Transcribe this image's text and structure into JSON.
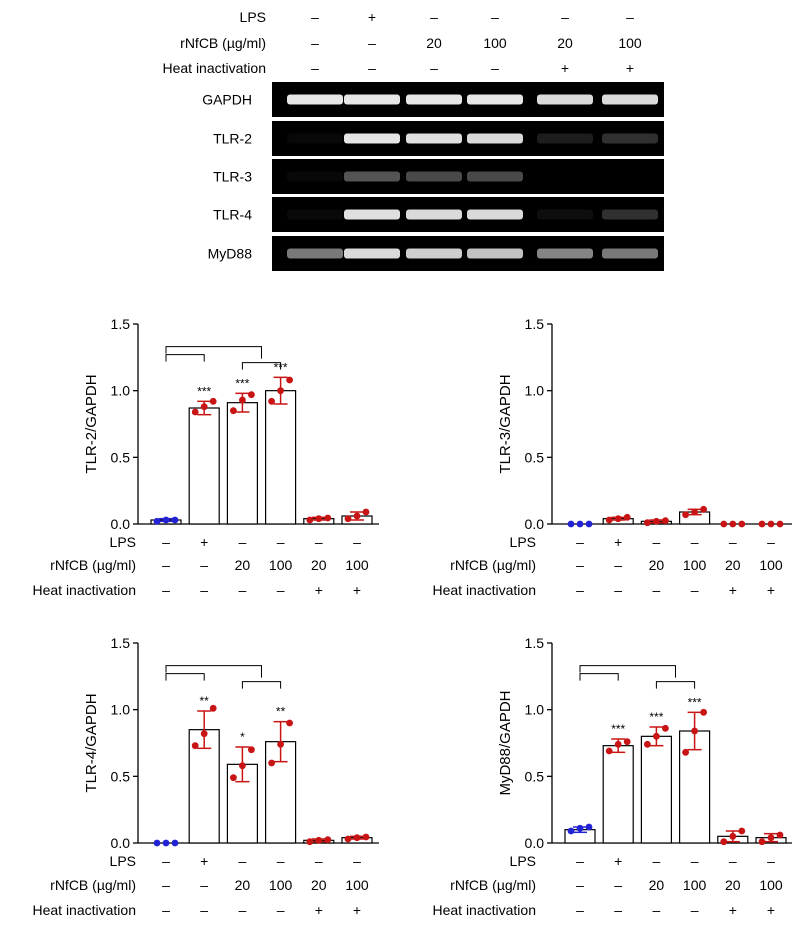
{
  "colors": {
    "control": "#2323d6",
    "treated": "#c81414",
    "gel_bg": "#000000",
    "band": "#ffffff",
    "bar_fill": "#ffffff",
    "axis": "#000000"
  },
  "gel": {
    "conditions": [
      {
        "label": "LPS",
        "values": [
          "–",
          "+",
          "–",
          "–",
          "–",
          "–"
        ]
      },
      {
        "label": "rNfCB (µg/ml)",
        "values": [
          "–",
          "–",
          "20",
          "100",
          "20",
          "100"
        ]
      },
      {
        "label": "Heat inactivation",
        "values": [
          "–",
          "–",
          "–",
          "–",
          "+",
          "+"
        ]
      }
    ],
    "rows": [
      {
        "label": "GAPDH",
        "intensity": [
          0.95,
          0.95,
          0.95,
          0.95,
          0.9,
          0.9
        ]
      },
      {
        "label": "TLR-2",
        "intensity": [
          0.03,
          0.95,
          0.92,
          0.9,
          0.12,
          0.2
        ]
      },
      {
        "label": "TLR-3",
        "intensity": [
          0.03,
          0.35,
          0.3,
          0.3,
          0.0,
          0.0
        ]
      },
      {
        "label": "TLR-4",
        "intensity": [
          0.04,
          0.92,
          0.9,
          0.9,
          0.06,
          0.2
        ]
      },
      {
        "label": "MyD88",
        "intensity": [
          0.5,
          0.9,
          0.85,
          0.8,
          0.55,
          0.5
        ]
      }
    ]
  },
  "chart_data": [
    {
      "type": "bar",
      "ylabel": "TLR-2/GAPDH",
      "ylim": [
        0,
        1.5
      ],
      "yticks": [
        "0.0",
        "0.5",
        "1.0",
        "1.5"
      ],
      "values": [
        0.03,
        0.87,
        0.91,
        1.0,
        0.04,
        0.06
      ],
      "errors": [
        0.01,
        0.05,
        0.07,
        0.1,
        0.01,
        0.03
      ],
      "points": [
        [
          0.02,
          0.03,
          0.03
        ],
        [
          0.84,
          0.88,
          0.92
        ],
        [
          0.85,
          0.93,
          0.97
        ],
        [
          0.92,
          1.0,
          1.08
        ],
        [
          0.03,
          0.04,
          0.045
        ],
        [
          0.04,
          0.06,
          0.09
        ]
      ],
      "significance": [
        "",
        "***",
        "***",
        "***",
        "",
        ""
      ],
      "brackets": true,
      "conditions": [
        {
          "label": "LPS",
          "values": [
            "–",
            "+",
            "–",
            "–",
            "–",
            "–"
          ]
        },
        {
          "label": "rNfCB (µg/ml)",
          "values": [
            "–",
            "–",
            "20",
            "100",
            "20",
            "100"
          ]
        },
        {
          "label": "Heat inactivation",
          "values": [
            "–",
            "–",
            "–",
            "–",
            "+",
            "+"
          ]
        }
      ]
    },
    {
      "type": "bar",
      "ylabel": "TLR-3/GAPDH",
      "ylim": [
        0,
        1.5
      ],
      "yticks": [
        "0.0",
        "0.5",
        "1.0",
        "1.5"
      ],
      "values": [
        0.0,
        0.04,
        0.02,
        0.09,
        0.0,
        0.0
      ],
      "errors": [
        0.0,
        0.01,
        0.01,
        0.02,
        0.0,
        0.0
      ],
      "points": [
        [
          0.0,
          0.0,
          0.0
        ],
        [
          0.03,
          0.04,
          0.05
        ],
        [
          0.01,
          0.02,
          0.025
        ],
        [
          0.07,
          0.09,
          0.11
        ],
        [
          0.0,
          0.0,
          0.0
        ],
        [
          0.0,
          0.0,
          0.0
        ]
      ],
      "significance": [
        "",
        "",
        "",
        "",
        "",
        ""
      ],
      "brackets": false,
      "conditions": [
        {
          "label": "LPS",
          "values": [
            "–",
            "+",
            "–",
            "–",
            "–",
            "–"
          ]
        },
        {
          "label": "rNfCB (µg/ml)",
          "values": [
            "–",
            "–",
            "20",
            "100",
            "20",
            "100"
          ]
        },
        {
          "label": "Heat inactivation",
          "values": [
            "–",
            "–",
            "–",
            "–",
            "+",
            "+"
          ]
        }
      ]
    },
    {
      "type": "bar",
      "ylabel": "TLR-4/GAPDH",
      "ylim": [
        0,
        1.5
      ],
      "yticks": [
        "0.0",
        "0.5",
        "1.0",
        "1.5"
      ],
      "values": [
        0.0,
        0.85,
        0.59,
        0.76,
        0.02,
        0.04
      ],
      "errors": [
        0.0,
        0.14,
        0.13,
        0.15,
        0.01,
        0.01
      ],
      "points": [
        [
          0.0,
          0.0,
          0.0
        ],
        [
          0.73,
          0.82,
          1.01
        ],
        [
          0.49,
          0.58,
          0.7
        ],
        [
          0.6,
          0.74,
          0.9
        ],
        [
          0.01,
          0.02,
          0.025
        ],
        [
          0.03,
          0.04,
          0.045
        ]
      ],
      "significance": [
        "",
        "**",
        "*",
        "**",
        "",
        ""
      ],
      "brackets": true,
      "conditions": [
        {
          "label": "LPS",
          "values": [
            "–",
            "+",
            "–",
            "–",
            "–",
            "–"
          ]
        },
        {
          "label": "rNfCB (µg/ml)",
          "values": [
            "–",
            "–",
            "20",
            "100",
            "20",
            "100"
          ]
        },
        {
          "label": "Heat inactivation",
          "values": [
            "–",
            "–",
            "–",
            "–",
            "+",
            "+"
          ]
        }
      ]
    },
    {
      "type": "bar",
      "ylabel": "MyD88/GAPDH",
      "ylim": [
        0,
        1.5
      ],
      "yticks": [
        "0.0",
        "0.5",
        "1.0",
        "1.5"
      ],
      "values": [
        0.1,
        0.73,
        0.8,
        0.84,
        0.05,
        0.04
      ],
      "errors": [
        0.02,
        0.05,
        0.07,
        0.14,
        0.04,
        0.03
      ],
      "points": [
        [
          0.09,
          0.11,
          0.12
        ],
        [
          0.69,
          0.74,
          0.76
        ],
        [
          0.74,
          0.8,
          0.86
        ],
        [
          0.68,
          0.84,
          0.98
        ],
        [
          0.01,
          0.05,
          0.09
        ],
        [
          0.01,
          0.04,
          0.06
        ]
      ],
      "significance": [
        "",
        "***",
        "***",
        "***",
        "",
        ""
      ],
      "brackets": true,
      "conditions": [
        {
          "label": "LPS",
          "values": [
            "–",
            "+",
            "–",
            "–",
            "–",
            "–"
          ]
        },
        {
          "label": "rNfCB (µg/ml)",
          "values": [
            "–",
            "–",
            "20",
            "100",
            "20",
            "100"
          ]
        },
        {
          "label": "Heat inactivation",
          "values": [
            "–",
            "–",
            "–",
            "–",
            "+",
            "+"
          ]
        }
      ]
    }
  ]
}
